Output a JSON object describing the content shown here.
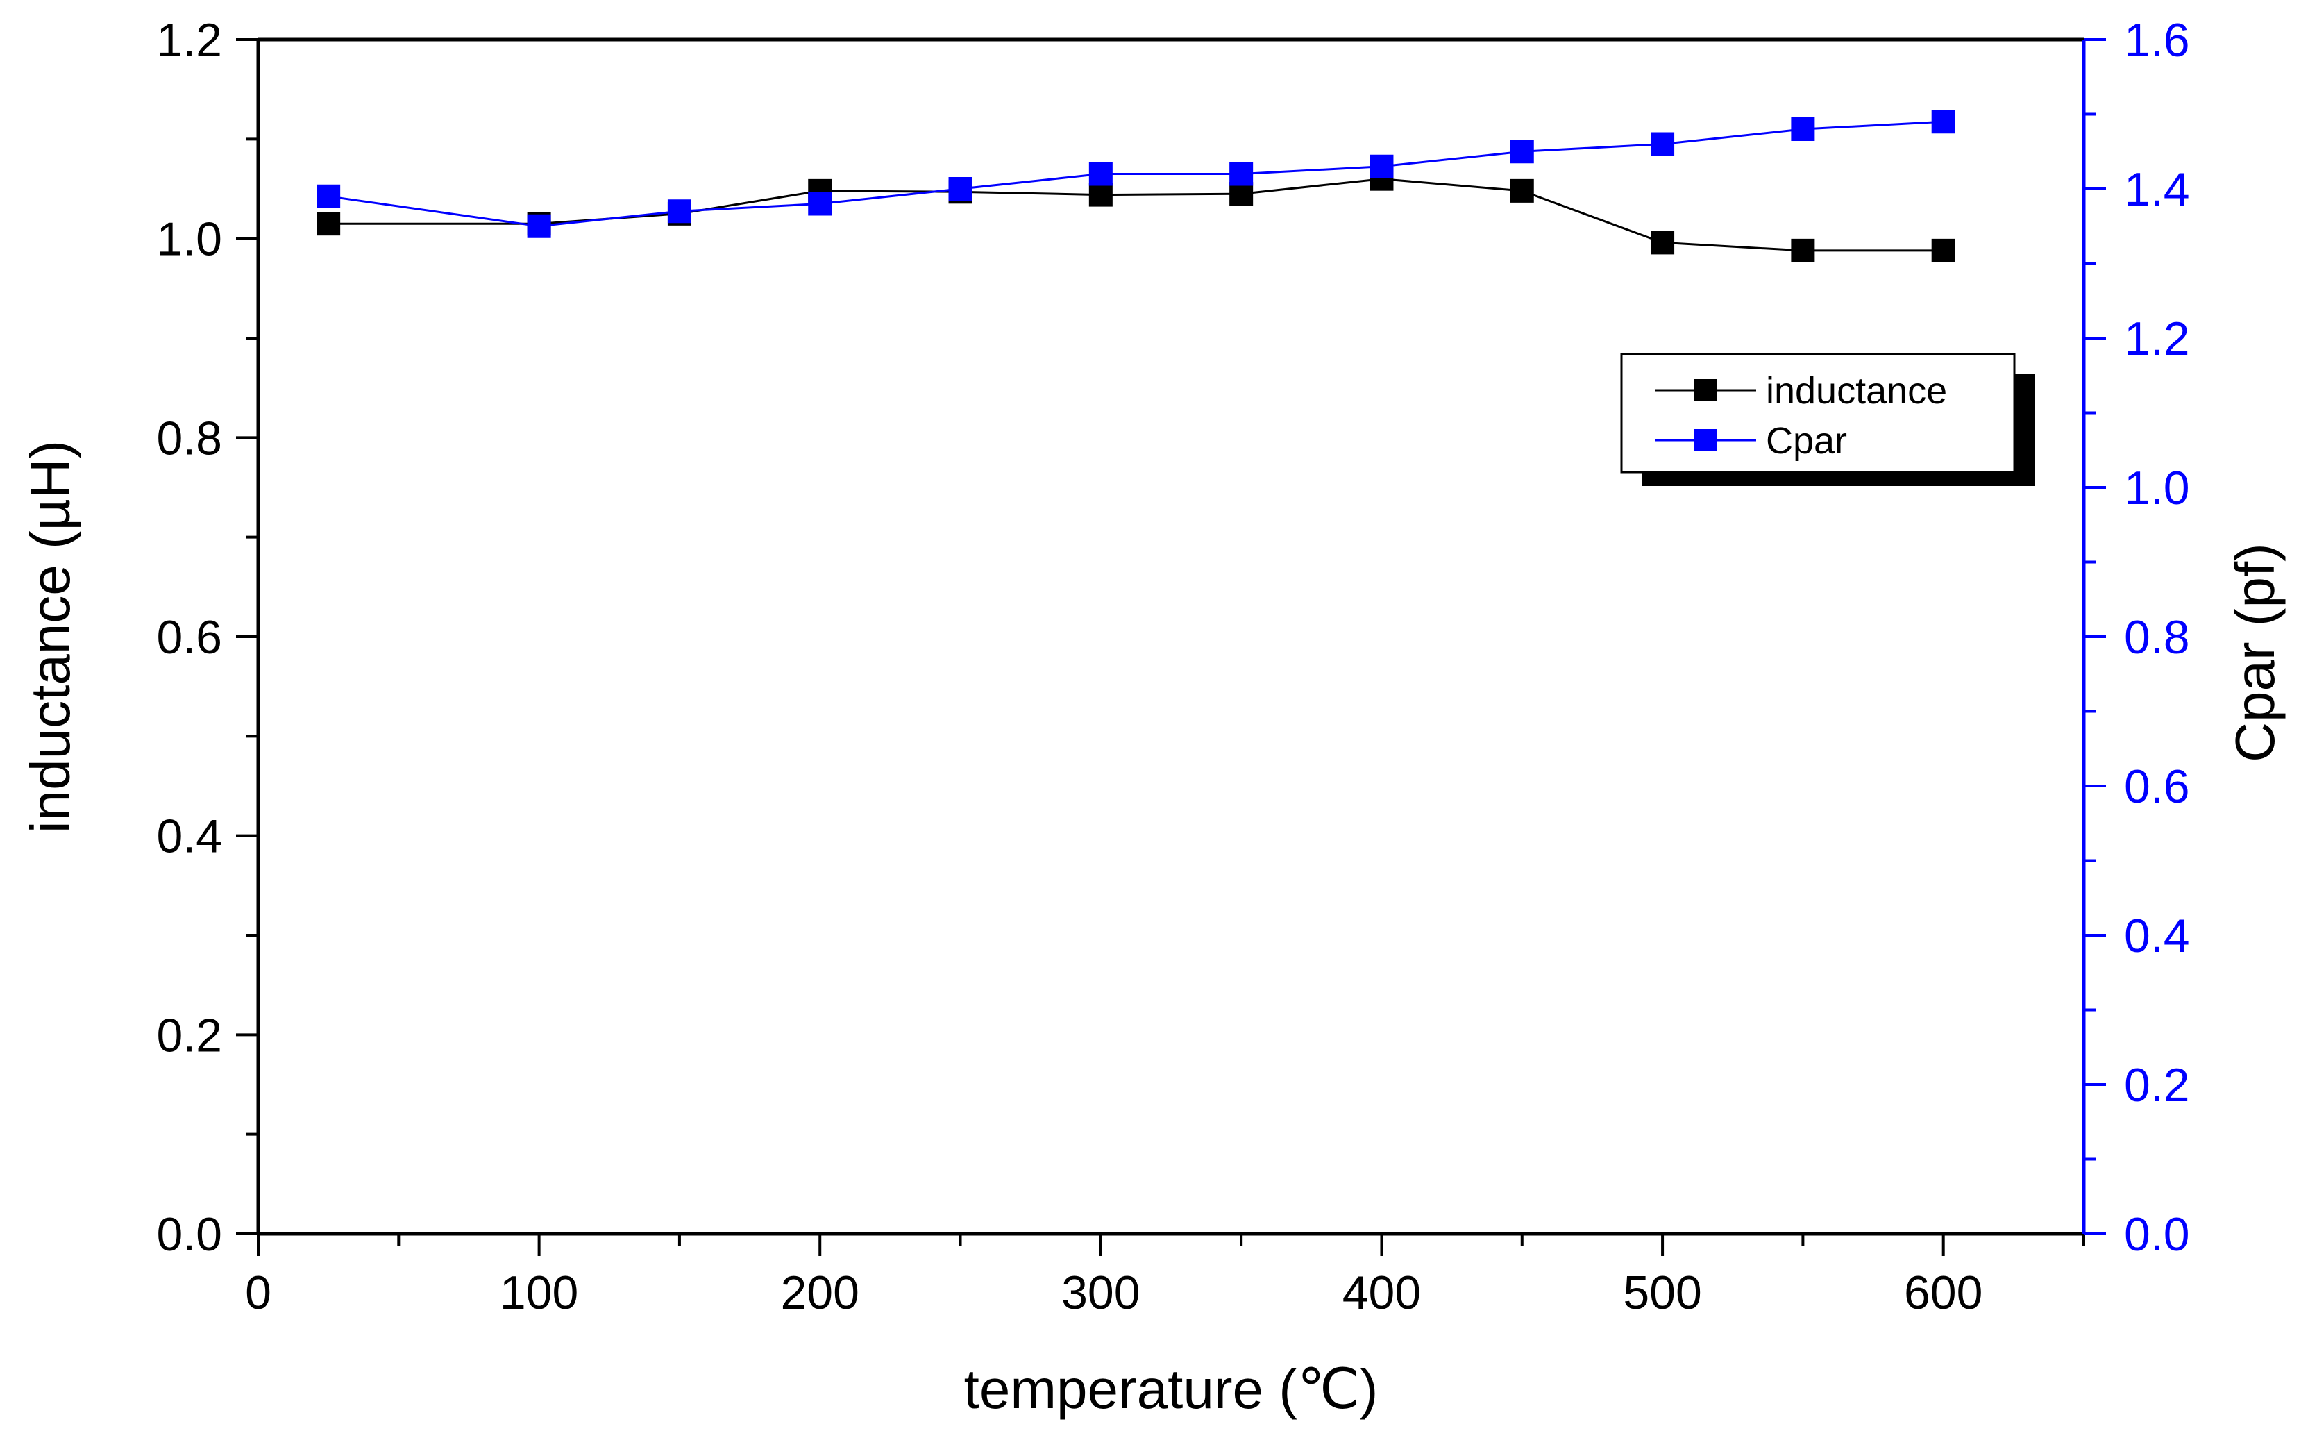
{
  "chart_data": {
    "type": "line",
    "title": "",
    "xlabel": "temperature (℃)",
    "ylabel": "inductance (µH)",
    "y2label": "Cpar (pf)",
    "xlim": [
      0,
      650
    ],
    "ylim": [
      0,
      1.2
    ],
    "y2lim": [
      0,
      1.6
    ],
    "xticks": [
      0,
      100,
      200,
      300,
      400,
      500,
      600
    ],
    "xtick_labels": [
      "0",
      "100",
      "200",
      "300",
      "400",
      "500",
      "600"
    ],
    "yticks": [
      0,
      0.2,
      0.4,
      0.6,
      0.8,
      1.0,
      1.2
    ],
    "ytick_labels": [
      "0.0",
      "0.2",
      "0.4",
      "0.6",
      "0.8",
      "1.0",
      "1.2"
    ],
    "y2ticks": [
      0,
      0.2,
      0.4,
      0.6,
      0.8,
      1.0,
      1.2,
      1.4,
      1.6
    ],
    "y2tick_labels": [
      "0.0",
      "0.2",
      "0.4",
      "0.6",
      "0.8",
      "1.0",
      "1.2",
      "1.4",
      "1.6"
    ],
    "x": [
      25,
      100,
      150,
      200,
      250,
      300,
      350,
      400,
      450,
      500,
      550,
      600
    ],
    "series": [
      {
        "name": "inductance",
        "axis": "left",
        "color": "#000000",
        "values": [
          1.015,
          1.015,
          1.025,
          1.048,
          1.047,
          1.044,
          1.045,
          1.06,
          1.048,
          0.996,
          0.988,
          0.988
        ]
      },
      {
        "name": "Cpar",
        "axis": "right",
        "color": "#0000ff",
        "values": [
          1.39,
          1.35,
          1.37,
          1.38,
          1.4,
          1.42,
          1.42,
          1.43,
          1.45,
          1.46,
          1.48,
          1.49
        ]
      }
    ],
    "legend": {
      "position": "upper-right",
      "entries": [
        "inductance",
        "Cpar"
      ]
    },
    "colors": {
      "left_axis": "#000000",
      "right_axis": "#0000ff"
    }
  }
}
